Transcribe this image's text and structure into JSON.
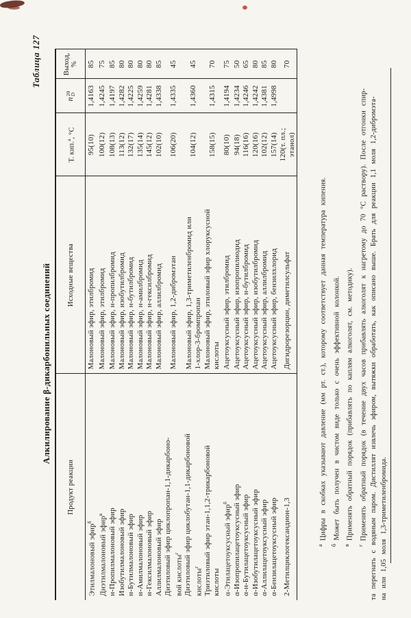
{
  "page": {
    "table_label": "Таблица 127",
    "title": "Алкилирование β-дикарбонильных соединений"
  },
  "table": {
    "header": {
      "product": "Продукт реакции",
      "reactants": "Исходные вещества",
      "bp_label": "Т. кип.",
      "bp_note": "а",
      "bp_units": ", °С",
      "nd_base": "n",
      "nd_sup": "20",
      "nd_sub": "D",
      "yield": "Выход,\n%"
    },
    "rows": [
      {
        "product": "Этилмалоновый эфир",
        "product_note": "б",
        "reactants": "Малоновый эфир, этилбромид",
        "bp": "95(10)",
        "nd": "1,4163",
        "yield": "85"
      },
      {
        "product": "Диэтилмалоновый эфир",
        "product_note": "в",
        "reactants": "Малоновый эфир, этилбромид",
        "bp": "100(12)",
        "nd": "1,4245",
        "yield": "75"
      },
      {
        "product": "н-Пропилмалоновый эфир",
        "product_note": "",
        "reactants": "Малоновый эфир, н-пропилбромид",
        "bp": "108(13)",
        "nd": "1,4197",
        "yield": "85"
      },
      {
        "product": "Изобутилмалоновый эфир",
        "product_note": "",
        "reactants": "Малоновый эфир, изобутилбромид",
        "bp": "113(12)",
        "nd": "1,4282",
        "yield": "80"
      },
      {
        "product": "н-Бутилмалоновый эфир",
        "product_note": "",
        "reactants": "Малоновый эфир, н-бутилбромид",
        "bp": "132(17)",
        "nd": "1,4225",
        "yield": "80"
      },
      {
        "product": "н-Амилмалоновый эфир",
        "product_note": "",
        "reactants": "Малоновый эфир, н-амилбромид",
        "bp": "135(14)",
        "nd": "1,4259",
        "yield": "80"
      },
      {
        "product": "н-Гексилмалоновый эфир",
        "product_note": "",
        "reactants": "Малоновый эфир, н-гексилбромид",
        "bp": "145(12)",
        "nd": "1,4281",
        "yield": "80"
      },
      {
        "product": "Аллилмалоновый эфир",
        "product_note": "",
        "reactants": "Малоновый эфир, аллилбромид",
        "bp": "102(10)",
        "nd": "1,4338",
        "yield": "85"
      },
      {
        "product": "Диэтиловый эфир циклопропан-1,1-дикарбоно-\nвой кислоты",
        "product_note": "г",
        "reactants": "Малоновый эфир, 1,2-дибромэтан",
        "bp": "106(20)",
        "nd": "1,4335",
        "yield": "45"
      },
      {
        "product": "Диэтиловый эфир циклобутан-1,1-дикарбоновой\nкислоты",
        "product_note": "г",
        "reactants": "Малоновый эфир, 1,3-триметиленбромид или\n1-хлор-3-бромпропан",
        "bp": "104(12)",
        "nd": "1,4360",
        "yield": "45"
      },
      {
        "product": "Триэтиловый эфир этан-1,1,2-трикарбоновой\nкислоты",
        "product_note": "",
        "reactants": "Малоновый эфир, этиловый эфир хлоруксусной\nкислоты",
        "bp": "158(15)",
        "nd": "1,4315",
        "yield": "70"
      },
      {
        "product": "α-Этилацетоуксусный эфир",
        "product_note": "б",
        "reactants": "Ацетоуксусный эфир, этилбромид",
        "bp": "80(10)",
        "nd": "1,4194",
        "yield": "75"
      },
      {
        "product": "α-Изопропилацетоуксусный эфир",
        "product_note": "",
        "reactants": "Ацетоуксусный эфир, изопропилиодид",
        "bp": "94(18)",
        "nd": "1,4234",
        "yield": "50"
      },
      {
        "product": "α-н-Бутилацетоуксусный эфир",
        "product_note": "",
        "reactants": "Ацетоуксусный эфир, н-бутилбромид",
        "bp": "116(16)",
        "nd": "1,4246",
        "yield": "65"
      },
      {
        "product": "α-Изобутилацетоуксусный эфир",
        "product_note": "",
        "reactants": "Ацетоуксусный эфир, изобутилбромид",
        "bp": "120(16)",
        "nd": "1,4242",
        "yield": "80"
      },
      {
        "product": "α-Аллилацетоуксусный эфир",
        "product_note": "",
        "reactants": "Ацетоуксусный эфир, аллилбромид",
        "bp": "102(12)",
        "nd": "1,4381",
        "yield": "85"
      },
      {
        "product": "α-Бензилацетоуксусный эфир",
        "product_note": "",
        "reactants": "Ацетоуксусный эфир, бензилхлорид",
        "bp": "157(14)",
        "nd": "1,4998",
        "yield": "80"
      },
      {
        "product": "2-Метилциклогександион-1,3",
        "product_note": "",
        "reactants": "Дигидрорезорцин, диметилсульфат",
        "bp": "120(т. пл.;\nэтанол)",
        "nd": "",
        "yield": "70"
      }
    ]
  },
  "footnotes": [
    {
      "marker": "а",
      "text": "Цифры в скобках указывают давление (мм рт. ст.), которому соответствует данная температура кипения."
    },
    {
      "marker": "б",
      "text": "Может быть получен в чистом виде только с очень эффективной колонкой."
    },
    {
      "marker": "в",
      "text": "Применять обратный порядок (прибавлять по каплям алкоголят, см. методику)."
    },
    {
      "marker": "г",
      "text": "Применять обратный порядок (в течение двух часов прибавлять алкоголят к нагретому до 70 °С раствору). После отгонки спир-"
    },
    {
      "marker": "",
      "text": "та перегнать с водяным паром. Дистиллят извлечь эфиром, вытяжки обработать, как описано выше. Брать для реакции 1,1 моля 1,2-дибромэта-"
    },
    {
      "marker": "",
      "text": "на или 1,05 моля 1,3-триметиленбромида."
    }
  ]
}
